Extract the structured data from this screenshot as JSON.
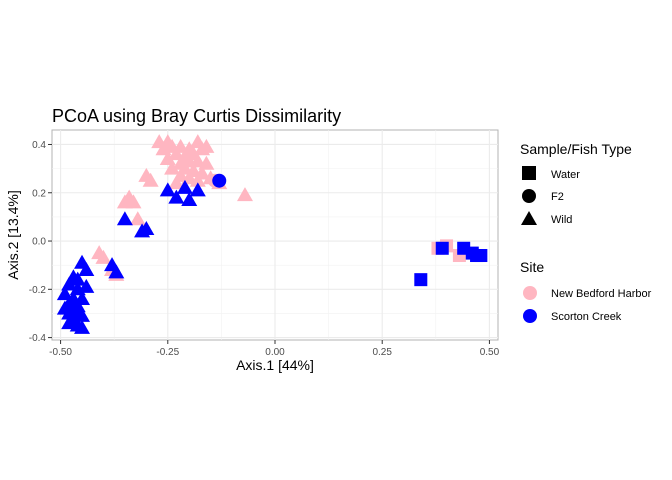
{
  "chart_data": {
    "type": "scatter",
    "title": "PCoA using Bray Curtis Dissimilarity",
    "xlabel": "Axis.1   [44%]",
    "ylabel": "Axis.2  [13.4%]",
    "xlim": [
      -0.52,
      0.52
    ],
    "ylim": [
      -0.41,
      0.46
    ],
    "xticks": [
      -0.5,
      -0.25,
      0.0,
      0.25,
      0.5
    ],
    "xtick_labels": [
      "-0.50",
      "-0.25",
      "0.00",
      "0.25",
      "0.50"
    ],
    "yticks": [
      -0.4,
      -0.2,
      0.0,
      0.2,
      0.4
    ],
    "ytick_labels": [
      "-0.4",
      "-0.2",
      "0.0",
      "0.2",
      "0.4"
    ],
    "grid": true,
    "legend_position": "right",
    "legends": [
      {
        "title": "Sample/Fish Type",
        "kind": "shape",
        "items": [
          {
            "label": "Water",
            "shape": "square"
          },
          {
            "label": "F2",
            "shape": "circle"
          },
          {
            "label": "Wild",
            "shape": "triangle"
          }
        ]
      },
      {
        "title": "Site",
        "kind": "color",
        "items": [
          {
            "label": "New Bedford Harbor",
            "color": "#FFB6C1"
          },
          {
            "label": "Scorton Creek",
            "color": "#0000FF"
          }
        ]
      }
    ],
    "series": [
      {
        "site": "New Bedford Harbor",
        "type": "Wild",
        "color": "#FFB6C1",
        "shape": "triangle",
        "points": [
          [
            -0.27,
            0.41
          ],
          [
            -0.25,
            0.41
          ],
          [
            -0.24,
            0.39
          ],
          [
            -0.26,
            0.38
          ],
          [
            -0.22,
            0.39
          ],
          [
            -0.2,
            0.38
          ],
          [
            -0.18,
            0.41
          ],
          [
            -0.17,
            0.38
          ],
          [
            -0.16,
            0.39
          ],
          [
            -0.23,
            0.36
          ],
          [
            -0.21,
            0.35
          ],
          [
            -0.19,
            0.36
          ],
          [
            -0.25,
            0.34
          ],
          [
            -0.22,
            0.32
          ],
          [
            -0.2,
            0.33
          ],
          [
            -0.18,
            0.33
          ],
          [
            -0.16,
            0.32
          ],
          [
            -0.24,
            0.3
          ],
          [
            -0.21,
            0.3
          ],
          [
            -0.19,
            0.29
          ],
          [
            -0.17,
            0.28
          ],
          [
            -0.15,
            0.26
          ],
          [
            -0.22,
            0.27
          ],
          [
            -0.2,
            0.26
          ],
          [
            -0.18,
            0.25
          ],
          [
            -0.23,
            0.24
          ],
          [
            -0.13,
            0.24
          ],
          [
            -0.3,
            0.27
          ],
          [
            -0.29,
            0.25
          ],
          [
            -0.34,
            0.18
          ],
          [
            -0.33,
            0.16
          ],
          [
            -0.35,
            0.16
          ],
          [
            -0.32,
            0.09
          ],
          [
            -0.07,
            0.19
          ],
          [
            -0.41,
            -0.05
          ],
          [
            -0.4,
            -0.07
          ],
          [
            -0.38,
            -0.12
          ],
          [
            -0.37,
            -0.14
          ]
        ]
      },
      {
        "site": "New Bedford Harbor",
        "type": "Water",
        "color": "#FFB6C1",
        "shape": "square",
        "points": [
          [
            0.38,
            -0.03
          ],
          [
            0.4,
            -0.02
          ],
          [
            0.43,
            -0.06
          ]
        ]
      },
      {
        "site": "New Bedford Harbor",
        "type": "F2",
        "color": "#FFB6C1",
        "shape": "circle",
        "points": [
          [
            -0.14,
            0.25
          ]
        ]
      },
      {
        "site": "Scorton Creek",
        "type": "Wild",
        "color": "#0000FF",
        "shape": "triangle",
        "points": [
          [
            -0.25,
            0.21
          ],
          [
            -0.21,
            0.22
          ],
          [
            -0.18,
            0.21
          ],
          [
            -0.23,
            0.18
          ],
          [
            -0.2,
            0.17
          ],
          [
            -0.35,
            0.09
          ],
          [
            -0.31,
            0.04
          ],
          [
            -0.3,
            0.05
          ],
          [
            -0.45,
            -0.09
          ],
          [
            -0.44,
            -0.12
          ],
          [
            -0.38,
            -0.1
          ],
          [
            -0.37,
            -0.13
          ],
          [
            -0.47,
            -0.15
          ],
          [
            -0.46,
            -0.16
          ],
          [
            -0.48,
            -0.18
          ],
          [
            -0.46,
            -0.2
          ],
          [
            -0.44,
            -0.19
          ],
          [
            -0.49,
            -0.22
          ],
          [
            -0.47,
            -0.24
          ],
          [
            -0.45,
            -0.24
          ],
          [
            -0.48,
            -0.26
          ],
          [
            -0.46,
            -0.27
          ],
          [
            -0.49,
            -0.28
          ],
          [
            -0.48,
            -0.3
          ],
          [
            -0.46,
            -0.29
          ],
          [
            -0.47,
            -0.32
          ],
          [
            -0.45,
            -0.31
          ],
          [
            -0.48,
            -0.34
          ],
          [
            -0.46,
            -0.35
          ],
          [
            -0.45,
            -0.36
          ]
        ]
      },
      {
        "site": "Scorton Creek",
        "type": "Water",
        "color": "#0000FF",
        "shape": "square",
        "points": [
          [
            0.34,
            -0.16
          ],
          [
            0.39,
            -0.03
          ],
          [
            0.44,
            -0.03
          ],
          [
            0.46,
            -0.05
          ],
          [
            0.47,
            -0.06
          ],
          [
            0.48,
            -0.06
          ]
        ]
      },
      {
        "site": "Scorton Creek",
        "type": "F2",
        "color": "#0000FF",
        "shape": "circle",
        "points": [
          [
            -0.13,
            0.25
          ]
        ]
      }
    ]
  }
}
